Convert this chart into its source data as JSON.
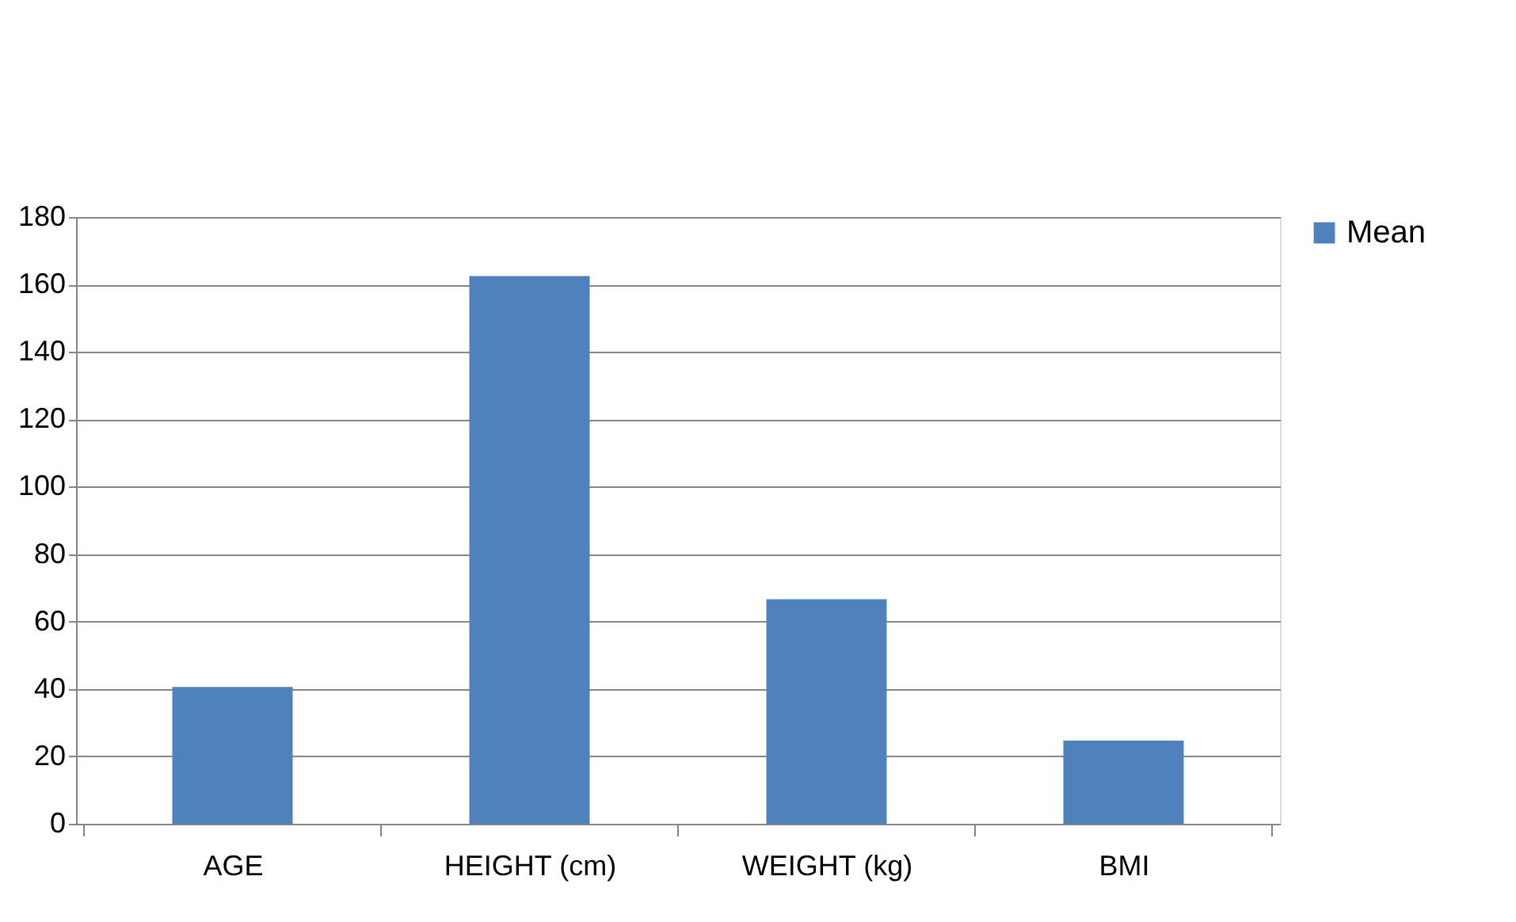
{
  "chart_data": {
    "type": "bar",
    "categories": [
      "AGE",
      "HEIGHT (cm)",
      "WEIGHT (kg)",
      "BMI"
    ],
    "series": [
      {
        "name": "Mean",
        "color": "#4f81bd",
        "values": [
          40.6,
          162.5,
          66.6,
          24.7
        ]
      }
    ],
    "ylim": [
      0,
      180
    ],
    "yticks": [
      0,
      20,
      40,
      60,
      80,
      100,
      120,
      140,
      160,
      180
    ],
    "grid": "y",
    "legend": "right"
  }
}
